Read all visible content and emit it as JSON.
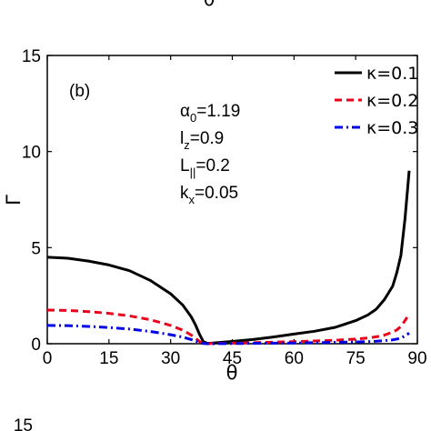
{
  "chart_data": {
    "type": "line",
    "panel_label": "(b)",
    "xlabel": "θ",
    "ylabel": "Γ",
    "xlim": [
      0,
      90
    ],
    "ylim": [
      0,
      15
    ],
    "x_ticks": [
      0,
      15,
      30,
      45,
      60,
      75,
      90
    ],
    "y_ticks": [
      0,
      5,
      10,
      15
    ],
    "top_cropped_label": "θ",
    "bottom_cropped_tick": "15",
    "parameters": [
      {
        "symbol": "α",
        "sub": "0",
        "value": "=1.19"
      },
      {
        "symbol": "l",
        "sub": "z",
        "value": "=0.9"
      },
      {
        "symbol": "L",
        "sub": "||",
        "value": "=0.2"
      },
      {
        "symbol": "k",
        "sub": "x",
        "value": "=0.05"
      }
    ],
    "legend_position": "top-right",
    "series": [
      {
        "name": "κ=0.1",
        "color": "#000000",
        "dash": "solid",
        "x": [
          0,
          5,
          10,
          15,
          20,
          25,
          30,
          33,
          35,
          36,
          37,
          38,
          39,
          40,
          45,
          50,
          55,
          60,
          65,
          70,
          75,
          78,
          80,
          82,
          84,
          85,
          86,
          87,
          88
        ],
        "y": [
          4.5,
          4.45,
          4.3,
          4.1,
          3.8,
          3.3,
          2.6,
          2.0,
          1.4,
          1.0,
          0.5,
          0.1,
          0.02,
          0.03,
          0.12,
          0.22,
          0.35,
          0.5,
          0.65,
          0.85,
          1.2,
          1.5,
          1.8,
          2.3,
          3.0,
          3.7,
          4.6,
          6.5,
          9.0
        ]
      },
      {
        "name": "κ=0.2",
        "color": "#e8001c",
        "dash": "dashed",
        "x": [
          0,
          5,
          10,
          15,
          20,
          25,
          30,
          33,
          35,
          36,
          37,
          38,
          39,
          40,
          45,
          50,
          55,
          60,
          65,
          70,
          75,
          78,
          80,
          82,
          84,
          85,
          86,
          87,
          88
        ],
        "y": [
          1.75,
          1.73,
          1.67,
          1.58,
          1.45,
          1.25,
          0.95,
          0.7,
          0.45,
          0.3,
          0.12,
          0.02,
          0.0,
          0.01,
          0.03,
          0.05,
          0.08,
          0.11,
          0.14,
          0.18,
          0.24,
          0.3,
          0.36,
          0.45,
          0.6,
          0.72,
          0.9,
          1.2,
          1.55
        ]
      },
      {
        "name": "κ=0.3",
        "color": "#0000e8",
        "dash": "dash-dot",
        "x": [
          0,
          5,
          10,
          15,
          20,
          25,
          30,
          33,
          35,
          36,
          37,
          38,
          39,
          40,
          45,
          50,
          55,
          60,
          65,
          70,
          75,
          78,
          80,
          82,
          84,
          85,
          86,
          87,
          88
        ],
        "y": [
          0.95,
          0.94,
          0.9,
          0.84,
          0.76,
          0.64,
          0.47,
          0.34,
          0.22,
          0.14,
          0.06,
          0.01,
          0.0,
          0.0,
          0.01,
          0.02,
          0.03,
          0.04,
          0.05,
          0.07,
          0.09,
          0.11,
          0.13,
          0.16,
          0.2,
          0.24,
          0.3,
          0.4,
          0.55
        ]
      }
    ]
  }
}
